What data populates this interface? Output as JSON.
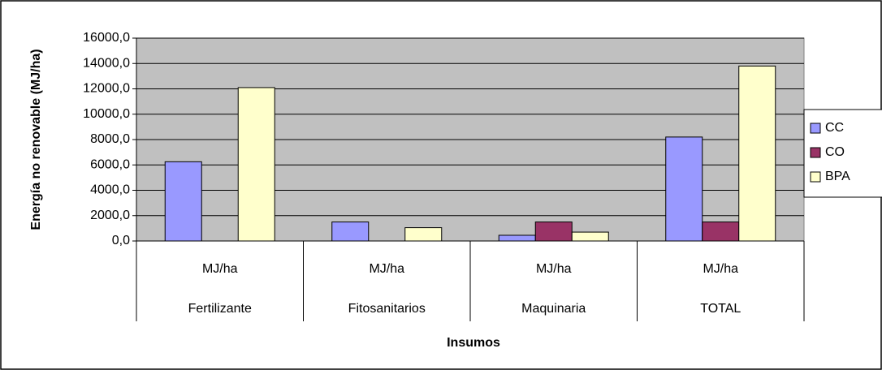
{
  "chart_data": {
    "type": "bar",
    "categories": [
      "Fertilizante",
      "Fitosanitarios",
      "Maquinaria",
      "TOTAL"
    ],
    "subcategories": [
      "MJ/ha",
      "MJ/ha",
      "MJ/ha",
      "MJ/ha"
    ],
    "series": [
      {
        "name": "CC",
        "color": "#9999ff",
        "values": [
          6250,
          1500,
          450,
          8200
        ]
      },
      {
        "name": "CO",
        "color": "#993366",
        "values": [
          0,
          0,
          1500,
          1500
        ]
      },
      {
        "name": "BPA",
        "color": "#ffffcc",
        "values": [
          12100,
          1050,
          700,
          13800
        ]
      }
    ],
    "ylim": [
      0,
      16000
    ],
    "yticks": [
      {
        "value": 0,
        "label": "0,0"
      },
      {
        "value": 2000,
        "label": "2000,0"
      },
      {
        "value": 4000,
        "label": "4000,0"
      },
      {
        "value": 6000,
        "label": "6000,0"
      },
      {
        "value": 8000,
        "label": "8000,0"
      },
      {
        "value": 10000,
        "label": "10000,0"
      },
      {
        "value": 12000,
        "label": "12000,0"
      },
      {
        "value": 14000,
        "label": "14000,0"
      },
      {
        "value": 16000,
        "label": "16000,0"
      }
    ],
    "ylabel": "Energía no renovable (MJ/ha)",
    "xlabel": "Insumos",
    "grid": true,
    "legend": "right"
  }
}
